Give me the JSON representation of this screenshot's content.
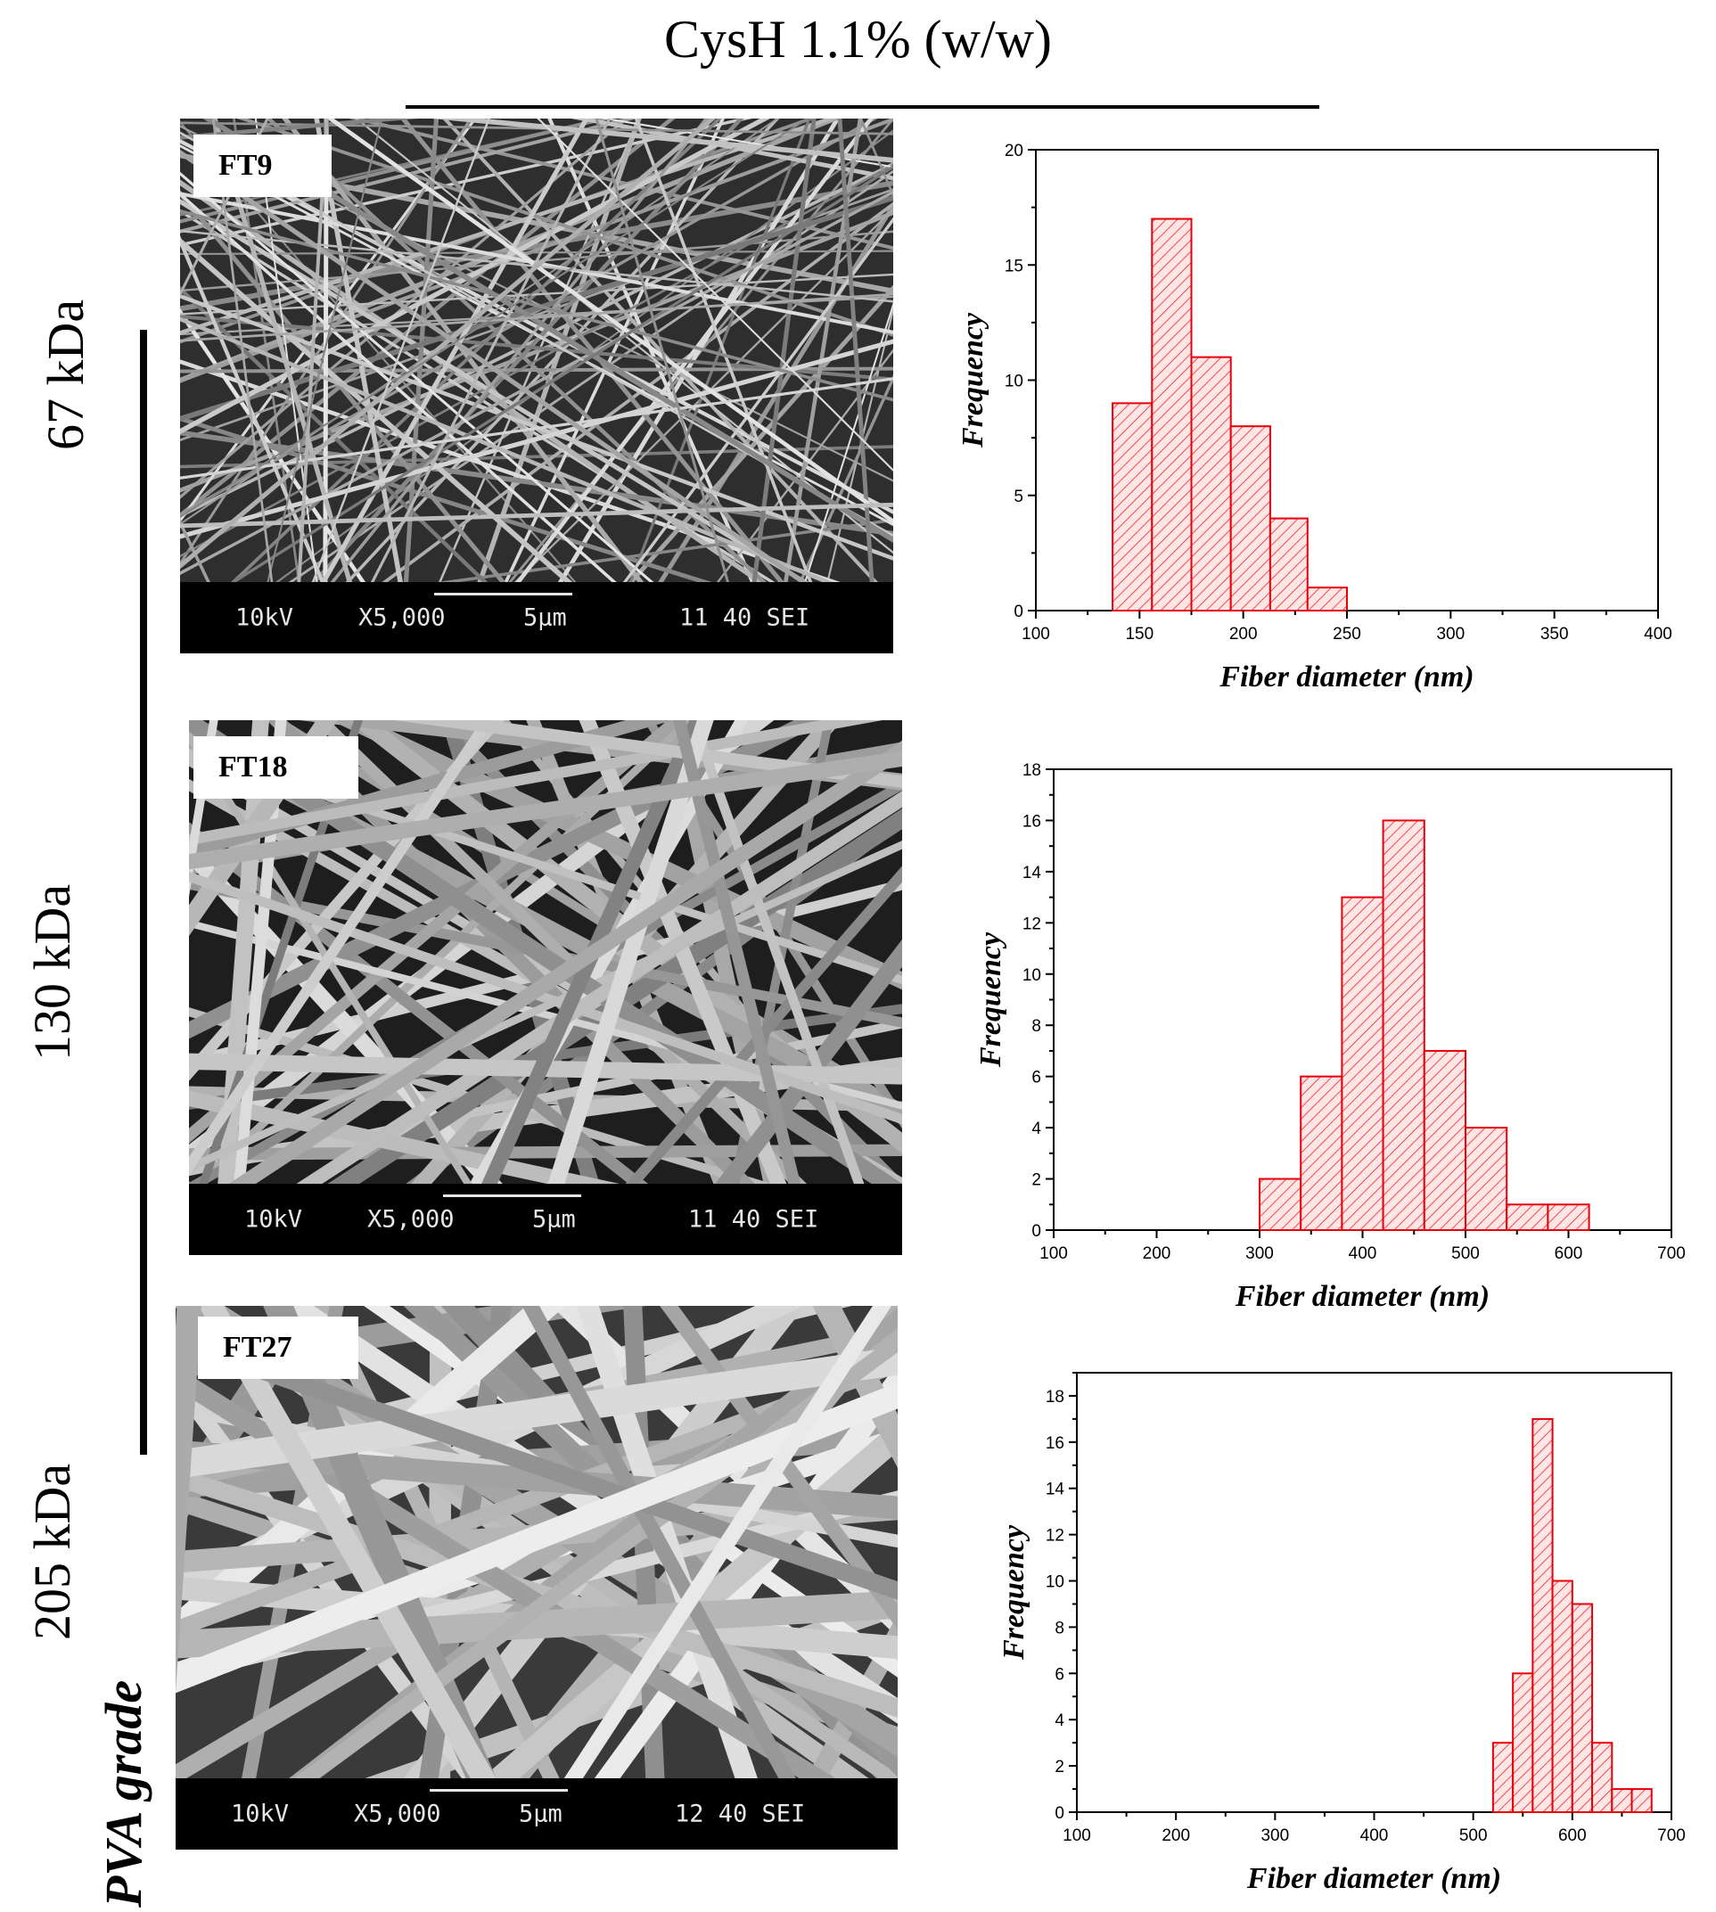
{
  "title": "CysH 1.1% (w/w)",
  "group_label": "PVA grade",
  "grades": [
    "67 kDa",
    "130 kDa",
    "205 kDa"
  ],
  "colors": {
    "bar_stroke": "#e8000b",
    "bar_fill": "#ffe6e6",
    "hatch": "#f04a4a",
    "axis": "#000000"
  },
  "sem_panels": [
    {
      "label": "FT9",
      "info": {
        "voltage": "10kV",
        "magnification": "X5,000",
        "scale": "5µm",
        "code": "11 40 SEI"
      }
    },
    {
      "label": "FT18",
      "info": {
        "voltage": "10kV",
        "magnification": "X5,000",
        "scale": "5µm",
        "code": "11 40 SEI"
      }
    },
    {
      "label": "FT27",
      "info": {
        "voltage": "10kV",
        "magnification": "X5,000",
        "scale": "5µm",
        "code": "12 40 SEI"
      }
    }
  ],
  "chart_data": [
    {
      "type": "bar",
      "title": "",
      "xlabel": "Fiber diameter (nm)",
      "ylabel": "Frequency",
      "xlim": [
        100,
        400
      ],
      "ylim": [
        0,
        20
      ],
      "xticks": [
        100,
        150,
        200,
        250,
        300,
        350,
        400
      ],
      "yticks": [
        0,
        5,
        10,
        15,
        20
      ],
      "bins": [
        [
          137,
          156
        ],
        [
          156,
          175
        ],
        [
          175,
          194
        ],
        [
          194,
          213
        ],
        [
          213,
          231
        ],
        [
          231,
          250
        ]
      ],
      "values": [
        9,
        17,
        11,
        8,
        4,
        1
      ]
    },
    {
      "type": "bar",
      "title": "",
      "xlabel": "Fiber diameter (nm)",
      "ylabel": "Frequency",
      "xlim": [
        100,
        700
      ],
      "ylim": [
        0,
        18
      ],
      "xticks": [
        100,
        200,
        300,
        400,
        500,
        600,
        700
      ],
      "yticks": [
        0,
        2,
        4,
        6,
        8,
        10,
        12,
        14,
        16,
        18
      ],
      "bins": [
        [
          300,
          340
        ],
        [
          340,
          380
        ],
        [
          380,
          420
        ],
        [
          420,
          460
        ],
        [
          460,
          500
        ],
        [
          500,
          540
        ],
        [
          540,
          580
        ],
        [
          580,
          620
        ]
      ],
      "values": [
        2,
        6,
        13,
        16,
        7,
        4,
        1,
        1
      ]
    },
    {
      "type": "bar",
      "title": "",
      "xlabel": "Fiber diameter (nm)",
      "ylabel": "Frequency",
      "xlim": [
        100,
        700
      ],
      "ylim": [
        0,
        19
      ],
      "xticks": [
        100,
        200,
        300,
        400,
        500,
        600,
        700
      ],
      "yticks": [
        0,
        2,
        4,
        6,
        8,
        10,
        12,
        14,
        16,
        18
      ],
      "bins": [
        [
          520,
          540
        ],
        [
          540,
          560
        ],
        [
          560,
          580
        ],
        [
          580,
          600
        ],
        [
          600,
          620
        ],
        [
          620,
          640
        ],
        [
          640,
          660
        ],
        [
          660,
          680
        ]
      ],
      "values": [
        3,
        6,
        17,
        10,
        9,
        3,
        1,
        1
      ]
    }
  ]
}
